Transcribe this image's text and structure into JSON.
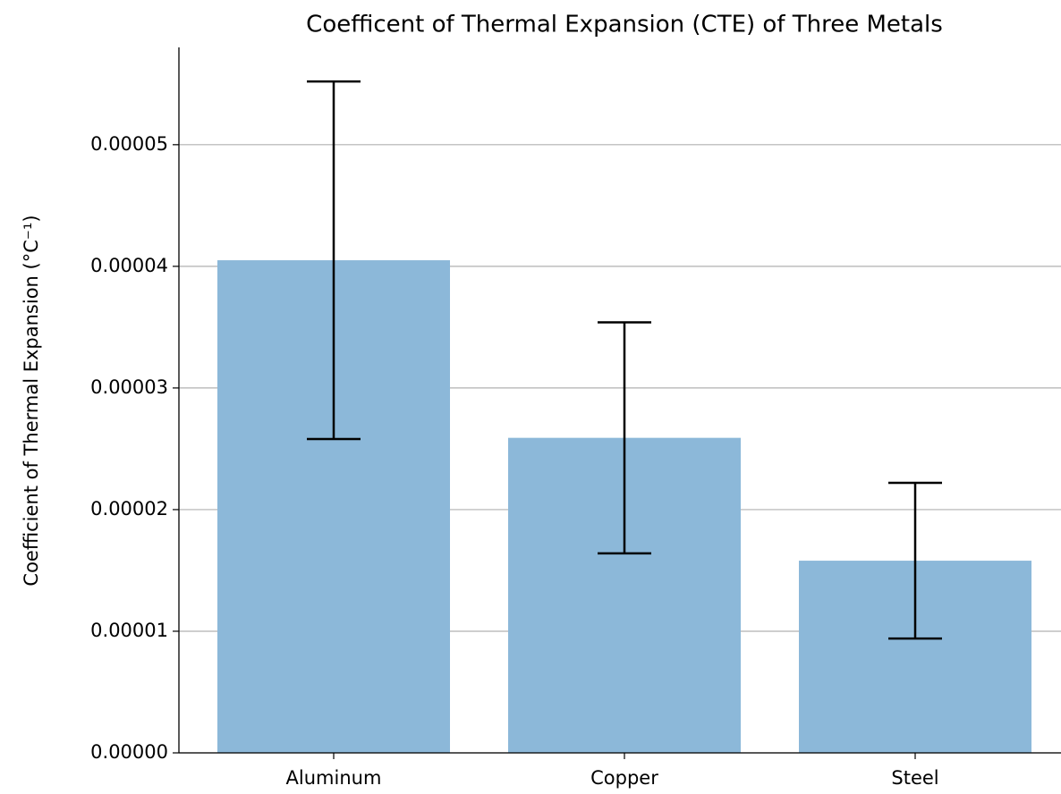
{
  "chart_data": {
    "type": "bar",
    "title": "Coefficent of Thermal Expansion (CTE) of Three Metals",
    "y_label": "Coefficient of Thermal Expansion (°C⁻¹)",
    "categories": [
      "Aluminum",
      "Copper",
      "Steel"
    ],
    "values": [
      4.05e-05,
      2.59e-05,
      1.58e-05
    ],
    "errors": [
      1.47e-05,
      9.5e-06,
      6.4e-06
    ],
    "color": "#8cb8d9",
    "error_color": "#000000",
    "ylim": [
      0,
      5.8e-05
    ],
    "yticks": [
      {
        "value": 0,
        "label": "0.00000"
      },
      {
        "value": 1e-05,
        "label": "0.00001"
      },
      {
        "value": 2e-05,
        "label": "0.00002"
      },
      {
        "value": 3e-05,
        "label": "0.00003"
      },
      {
        "value": 4e-05,
        "label": "0.00004"
      },
      {
        "value": 5e-05,
        "label": "0.00005"
      }
    ],
    "grid": true
  }
}
